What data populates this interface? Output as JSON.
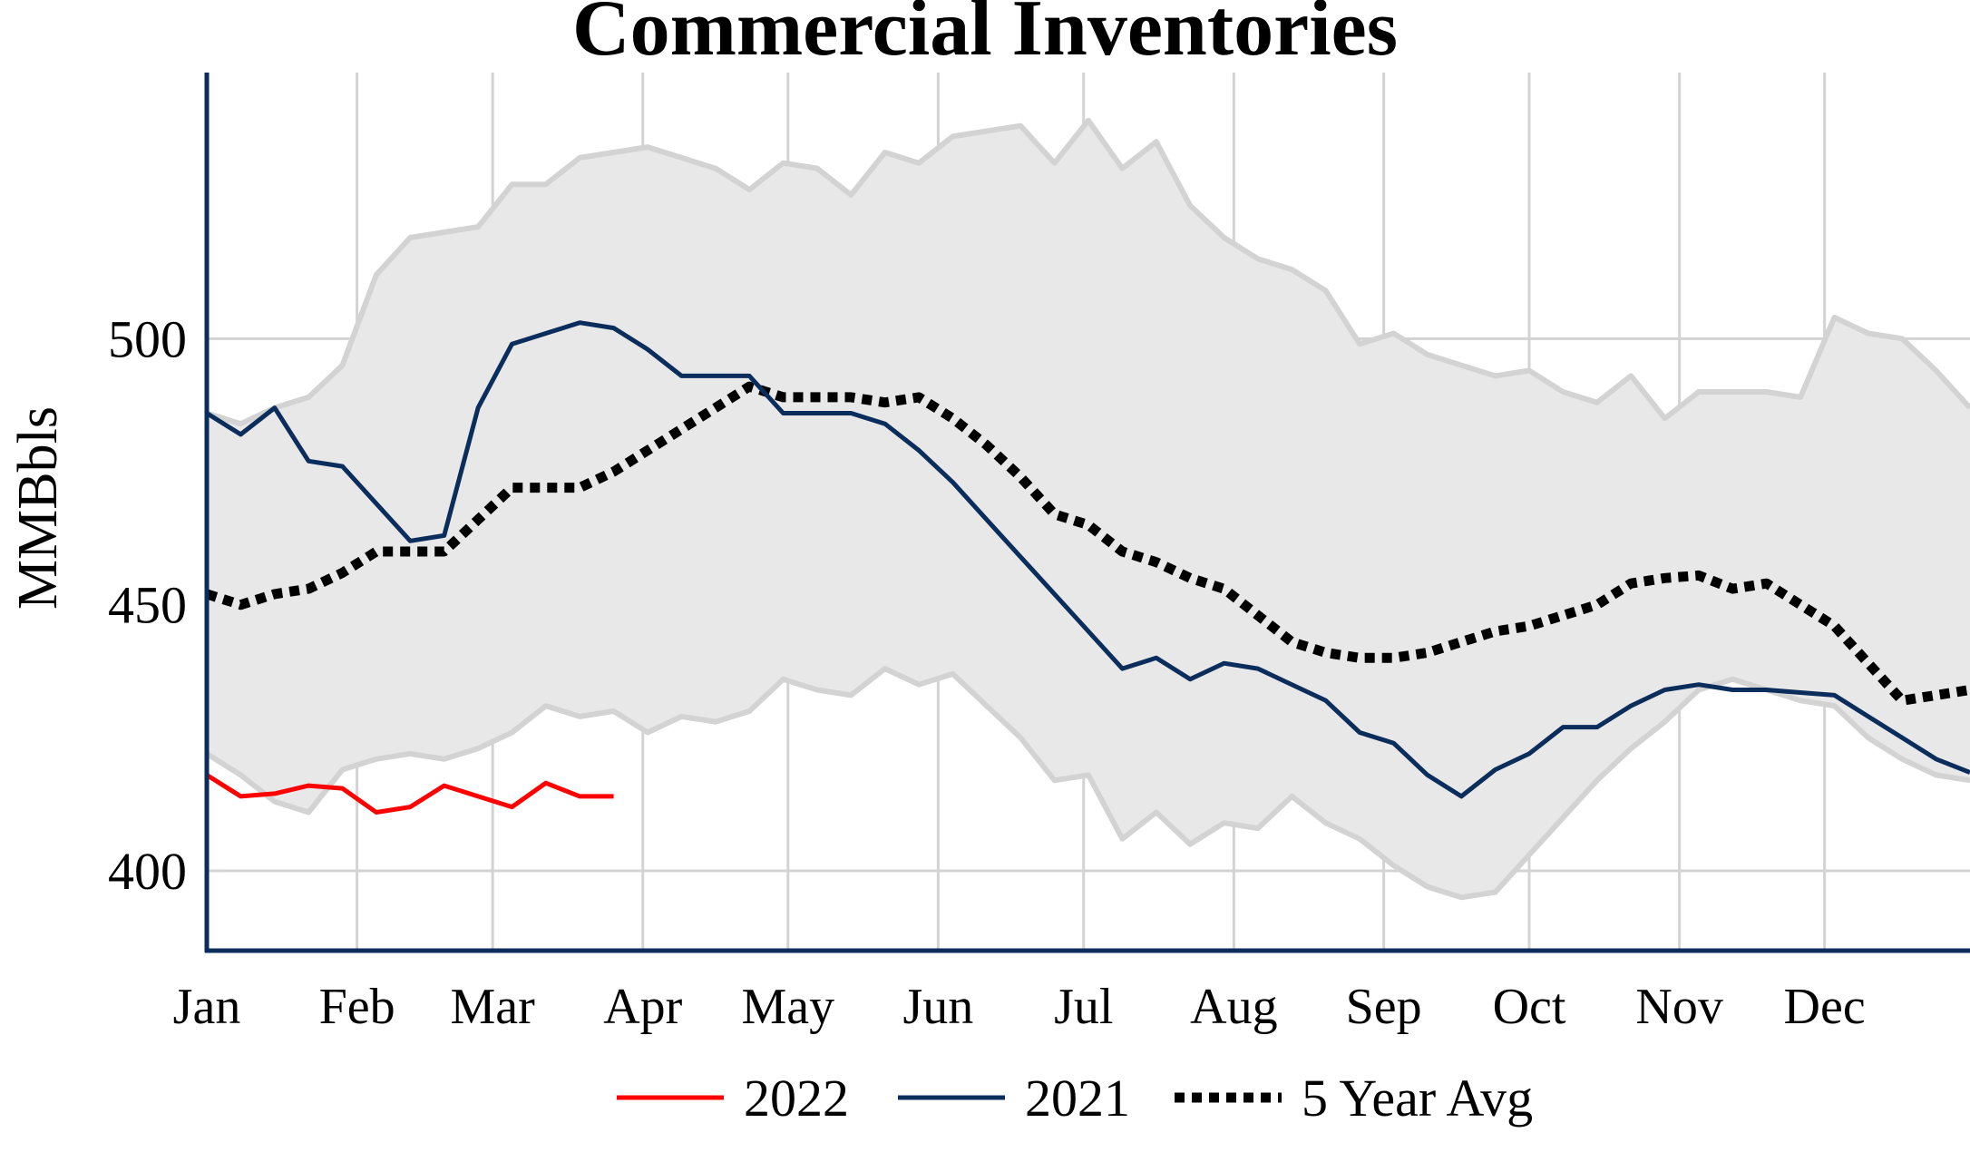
{
  "chart_data": {
    "type": "line",
    "title": "Commercial Inventories",
    "ylabel": "MMBbls",
    "xlabel": "",
    "ylim": [
      385,
      550
    ],
    "xlim": [
      0,
      52
    ],
    "yticks": [
      400,
      450,
      500
    ],
    "ytick_labels": [
      "400",
      "450",
      "500"
    ],
    "month_positions": [
      0,
      4.43,
      8.43,
      12.86,
      17.14,
      21.57,
      25.86,
      30.29,
      34.71,
      39,
      43.43,
      47.71
    ],
    "month_labels": [
      "Jan",
      "Feb",
      "Mar",
      "Apr",
      "May",
      "Jun",
      "Jul",
      "Aug",
      "Sep",
      "Oct",
      "Nov",
      "Dec"
    ],
    "grid": true,
    "legend_position": "bottom",
    "colors": {
      "series_2022": "#ff0000",
      "series_2021": "#0b2d5c",
      "series_5yr": "#000000",
      "range_fill": "#e8e8e9",
      "range_line": "#d3d3d3",
      "grid": "#d3d3d3",
      "axis": "#0b2d5c"
    },
    "range_band": {
      "x": [
        0,
        1,
        2,
        3,
        4,
        5,
        6,
        7,
        8,
        9,
        10,
        11,
        12,
        13,
        14,
        15,
        16,
        17,
        18,
        19,
        20,
        21,
        22,
        23,
        24,
        25,
        26,
        27,
        28,
        29,
        30,
        31,
        32,
        33,
        34,
        35,
        36,
        37,
        38,
        39,
        40,
        41,
        42,
        43,
        44,
        45,
        46,
        47,
        48,
        49,
        50,
        51,
        52
      ],
      "upper": [
        486,
        484,
        487,
        489,
        495,
        512,
        519,
        520,
        521,
        529,
        529,
        534,
        535,
        536,
        534,
        532,
        528,
        533,
        532,
        527,
        535,
        533,
        538,
        539,
        540,
        533,
        541,
        532,
        537,
        525,
        519,
        515,
        513,
        509,
        499,
        501,
        497,
        495,
        493,
        494,
        490,
        488,
        493,
        485,
        490,
        490,
        490,
        489,
        504,
        501,
        500,
        494,
        487
      ],
      "lower": [
        422,
        418,
        413,
        411,
        419,
        421,
        422,
        421,
        423,
        426,
        431,
        429,
        430,
        426,
        429,
        428,
        430,
        436,
        434,
        433,
        438,
        435,
        437,
        431,
        425,
        417,
        418,
        406,
        411,
        405,
        409,
        408,
        414,
        409,
        406,
        401,
        397,
        395,
        396,
        403,
        410,
        417,
        423,
        428,
        434,
        436,
        434,
        432,
        431,
        425,
        421,
        418,
        417
      ]
    },
    "series": [
      {
        "name": "2022",
        "style": "solid",
        "x": [
          0,
          1,
          2,
          3,
          4,
          5,
          6,
          7,
          8,
          9,
          10,
          11,
          12
        ],
        "values": [
          418,
          414,
          414.5,
          416,
          415.5,
          411,
          412,
          416,
          414,
          412,
          416.5,
          414,
          414
        ]
      },
      {
        "name": "2021",
        "style": "solid",
        "x": [
          0,
          1,
          2,
          3,
          4,
          5,
          6,
          7,
          8,
          9,
          10,
          11,
          12,
          13,
          14,
          15,
          16,
          17,
          18,
          19,
          20,
          21,
          22,
          23,
          24,
          25,
          26,
          27,
          28,
          29,
          30,
          31,
          32,
          33,
          34,
          35,
          36,
          37,
          38,
          39,
          40,
          41,
          42,
          43,
          44,
          45,
          46,
          47,
          48,
          49,
          50,
          51,
          52
        ],
        "values": [
          486,
          482,
          487,
          477,
          476,
          469,
          462,
          463,
          487,
          499,
          501,
          503,
          502,
          498,
          493,
          493,
          493,
          486,
          486,
          486,
          484,
          479,
          473,
          466,
          459,
          452,
          445,
          438,
          440,
          436,
          439,
          438,
          435,
          432,
          426,
          424,
          418,
          414,
          419,
          422,
          427,
          427,
          431,
          434,
          435,
          434,
          434,
          433.5,
          433,
          429,
          425,
          421,
          418.5
        ]
      },
      {
        "name": "5 Year Avg",
        "style": "dotted",
        "x": [
          0,
          1,
          2,
          3,
          4,
          5,
          6,
          7,
          8,
          9,
          10,
          11,
          12,
          13,
          14,
          15,
          16,
          17,
          18,
          19,
          20,
          21,
          22,
          23,
          24,
          25,
          26,
          27,
          28,
          29,
          30,
          31,
          32,
          33,
          34,
          35,
          36,
          37,
          38,
          39,
          40,
          41,
          42,
          43,
          44,
          45,
          46,
          47,
          48,
          49,
          50,
          51,
          52
        ],
        "values": [
          452,
          450,
          452,
          453,
          456,
          460,
          460,
          460,
          466,
          472,
          472,
          472,
          475,
          479,
          483,
          487,
          491,
          489,
          489,
          489,
          488,
          489,
          485,
          480,
          474,
          467,
          465,
          460,
          458,
          455,
          453,
          448,
          443,
          441,
          440,
          440,
          441,
          443,
          445,
          446,
          448,
          450,
          454,
          455,
          455.5,
          453,
          454,
          450,
          446,
          439,
          432,
          433,
          434
        ]
      }
    ],
    "legend": [
      {
        "label": "2022",
        "series": "2022"
      },
      {
        "label": "2021",
        "series": "2021"
      },
      {
        "label": "5 Year Avg",
        "series": "5 Year Avg"
      }
    ]
  }
}
